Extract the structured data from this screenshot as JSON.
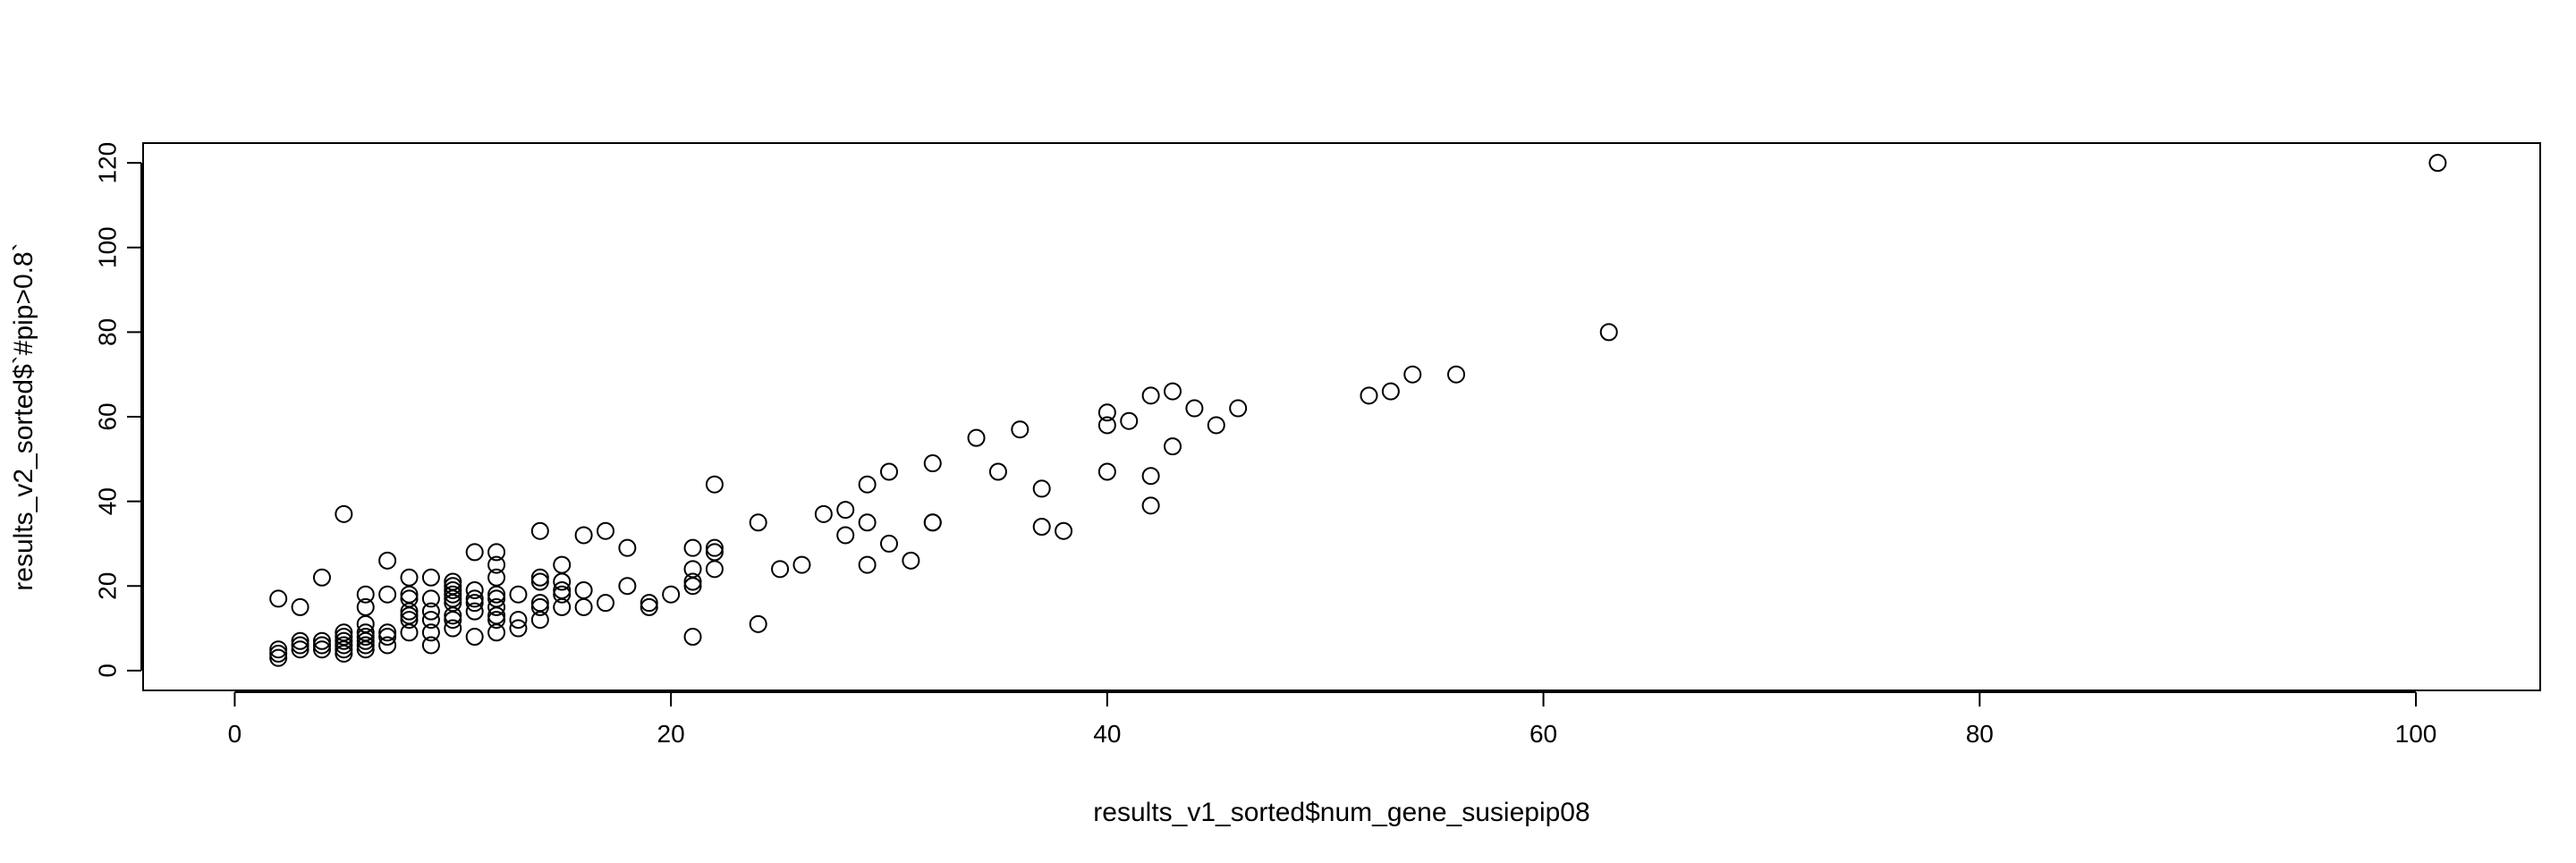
{
  "chart_data": {
    "type": "scatter",
    "title": "",
    "xlabel": "results_v1_sorted$num_gene_susiepip08",
    "ylabel": "results_v2_sorted$`#pip>0.8`",
    "xlim": [
      0,
      105
    ],
    "ylim": [
      0,
      120
    ],
    "x_ticks": [
      0,
      20,
      40,
      60,
      80,
      100
    ],
    "y_ticks": [
      0,
      20,
      40,
      60,
      80,
      100,
      120
    ],
    "grid": false,
    "marker": "open-circle",
    "marker_color": "#000000",
    "points": [
      [
        2,
        3
      ],
      [
        2,
        5
      ],
      [
        2,
        4
      ],
      [
        2,
        17
      ],
      [
        3,
        5
      ],
      [
        3,
        6
      ],
      [
        3,
        7
      ],
      [
        3,
        15
      ],
      [
        4,
        5
      ],
      [
        4,
        6
      ],
      [
        4,
        7
      ],
      [
        4,
        22
      ],
      [
        5,
        4
      ],
      [
        5,
        5
      ],
      [
        5,
        6
      ],
      [
        5,
        7
      ],
      [
        5,
        8
      ],
      [
        5,
        9
      ],
      [
        5,
        37
      ],
      [
        6,
        5
      ],
      [
        6,
        6
      ],
      [
        6,
        7
      ],
      [
        6,
        8
      ],
      [
        6,
        9
      ],
      [
        6,
        11
      ],
      [
        6,
        15
      ],
      [
        6,
        18
      ],
      [
        7,
        6
      ],
      [
        7,
        8
      ],
      [
        7,
        9
      ],
      [
        7,
        18
      ],
      [
        7,
        26
      ],
      [
        8,
        9
      ],
      [
        8,
        12
      ],
      [
        8,
        13
      ],
      [
        8,
        14
      ],
      [
        8,
        17
      ],
      [
        8,
        18
      ],
      [
        8,
        22
      ],
      [
        9,
        6
      ],
      [
        9,
        9
      ],
      [
        9,
        12
      ],
      [
        9,
        14
      ],
      [
        9,
        17
      ],
      [
        9,
        22
      ],
      [
        10,
        10
      ],
      [
        10,
        12
      ],
      [
        10,
        13
      ],
      [
        10,
        16
      ],
      [
        10,
        17
      ],
      [
        10,
        18
      ],
      [
        10,
        19
      ],
      [
        10,
        20
      ],
      [
        10,
        21
      ],
      [
        11,
        8
      ],
      [
        11,
        14
      ],
      [
        11,
        16
      ],
      [
        11,
        17
      ],
      [
        11,
        19
      ],
      [
        11,
        28
      ],
      [
        12,
        9
      ],
      [
        12,
        12
      ],
      [
        12,
        13
      ],
      [
        12,
        15
      ],
      [
        12,
        17
      ],
      [
        12,
        18
      ],
      [
        12,
        22
      ],
      [
        12,
        25
      ],
      [
        12,
        28
      ],
      [
        13,
        10
      ],
      [
        13,
        12
      ],
      [
        13,
        18
      ],
      [
        14,
        12
      ],
      [
        14,
        15
      ],
      [
        14,
        16
      ],
      [
        14,
        21
      ],
      [
        14,
        22
      ],
      [
        14,
        33
      ],
      [
        15,
        15
      ],
      [
        15,
        18
      ],
      [
        15,
        19
      ],
      [
        15,
        21
      ],
      [
        15,
        25
      ],
      [
        16,
        15
      ],
      [
        16,
        19
      ],
      [
        16,
        32
      ],
      [
        17,
        16
      ],
      [
        17,
        33
      ],
      [
        18,
        20
      ],
      [
        18,
        29
      ],
      [
        19,
        15
      ],
      [
        19,
        16
      ],
      [
        20,
        18
      ],
      [
        21,
        8
      ],
      [
        21,
        20
      ],
      [
        21,
        21
      ],
      [
        21,
        24
      ],
      [
        21,
        29
      ],
      [
        22,
        24
      ],
      [
        22,
        28
      ],
      [
        22,
        29
      ],
      [
        22,
        44
      ],
      [
        24,
        11
      ],
      [
        24,
        35
      ],
      [
        25,
        24
      ],
      [
        26,
        25
      ],
      [
        27,
        37
      ],
      [
        28,
        32
      ],
      [
        28,
        38
      ],
      [
        29,
        25
      ],
      [
        29,
        35
      ],
      [
        29,
        44
      ],
      [
        30,
        30
      ],
      [
        30,
        47
      ],
      [
        31,
        26
      ],
      [
        32,
        35
      ],
      [
        32,
        35
      ],
      [
        32,
        49
      ],
      [
        34,
        55
      ],
      [
        35,
        47
      ],
      [
        36,
        57
      ],
      [
        37,
        34
      ],
      [
        37,
        43
      ],
      [
        38,
        33
      ],
      [
        40,
        47
      ],
      [
        40,
        58
      ],
      [
        40,
        61
      ],
      [
        41,
        59
      ],
      [
        42,
        39
      ],
      [
        42,
        46
      ],
      [
        42,
        65
      ],
      [
        43,
        53
      ],
      [
        43,
        66
      ],
      [
        44,
        62
      ],
      [
        45,
        58
      ],
      [
        46,
        62
      ],
      [
        52,
        65
      ],
      [
        53,
        66
      ],
      [
        54,
        70
      ],
      [
        56,
        70
      ],
      [
        63,
        80
      ],
      [
        101,
        120
      ]
    ]
  }
}
